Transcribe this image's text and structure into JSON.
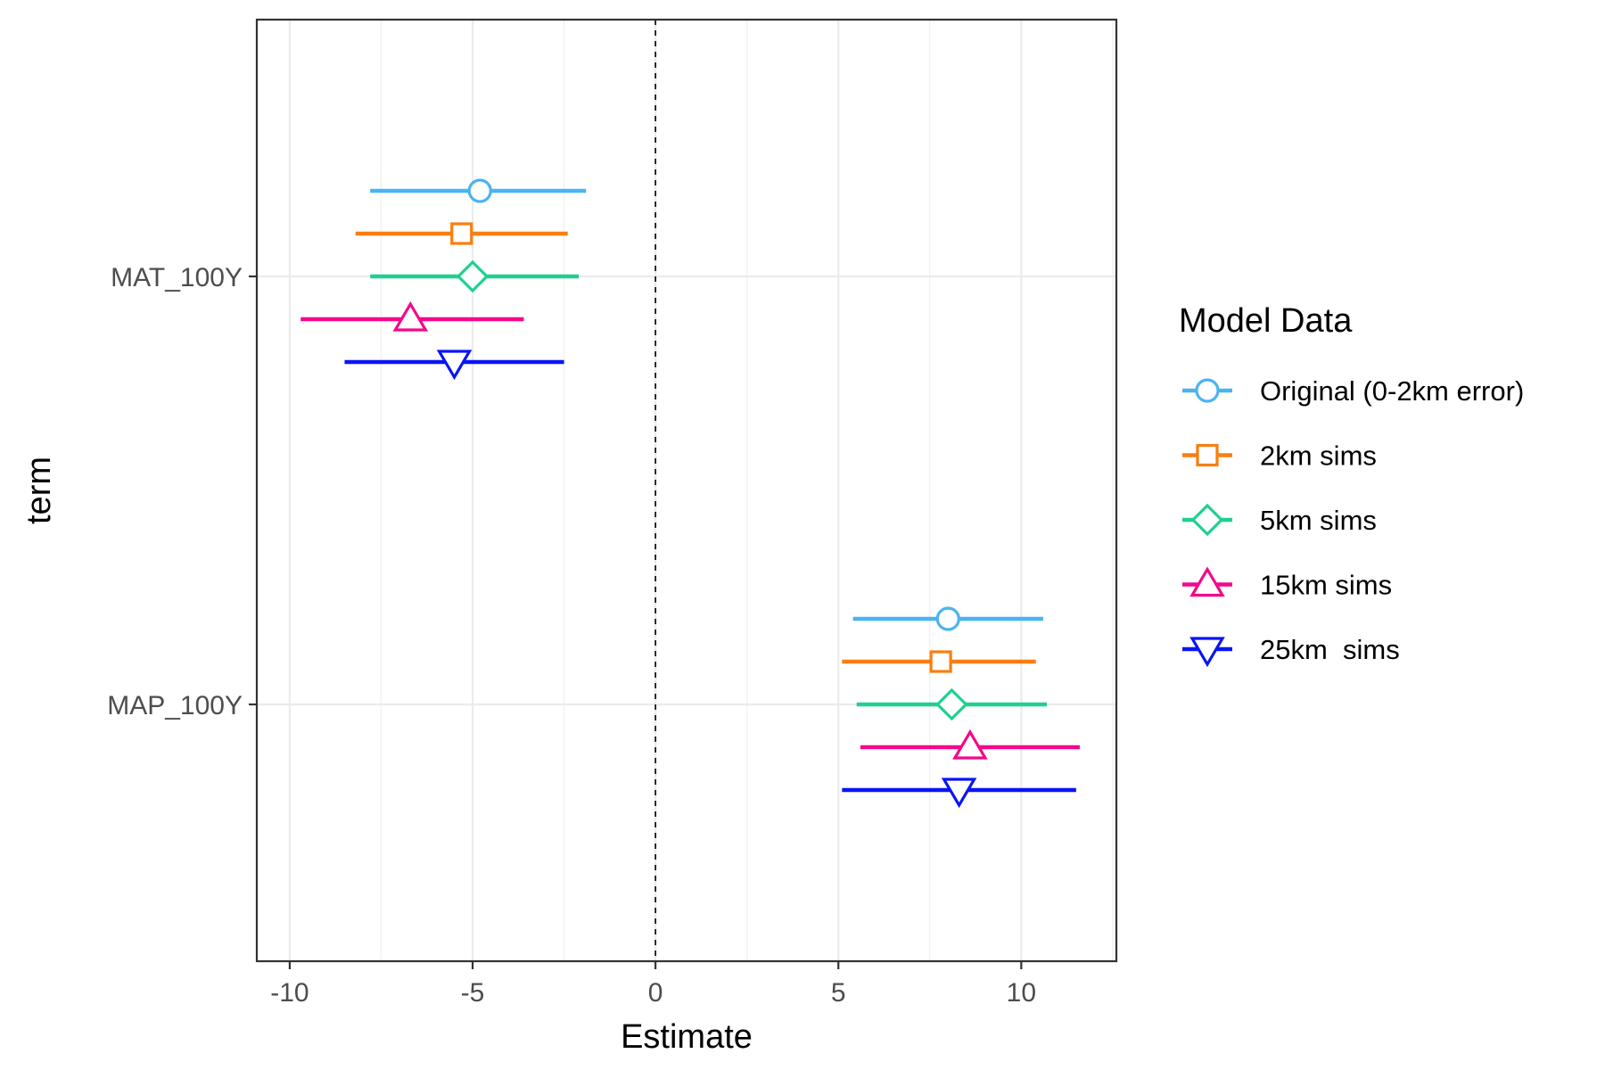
{
  "chart_data": {
    "type": "scatter",
    "subtype": "coefficient-plot-with-intervals",
    "title": "",
    "xlabel": "Estimate",
    "ylabel": "term",
    "xlim": [
      -10.9,
      12.6
    ],
    "x_ticks": [
      -10,
      -5,
      0,
      5,
      10
    ],
    "x_tick_labels": [
      "-10",
      "-5",
      "0",
      "5",
      "10"
    ],
    "categories": [
      "MAT_100Y",
      "MAP_100Y"
    ],
    "reference_line": {
      "x": 0,
      "style": "dashed"
    },
    "grid": true,
    "legend": {
      "title": "Model Data",
      "placement": "right"
    },
    "series": [
      {
        "name": "Original (0-2km error)",
        "color": "#4AB3F3",
        "marker": "circle",
        "values": [
          {
            "term": "MAT_100Y",
            "estimate": -4.8,
            "low": -7.8,
            "high": -1.9
          },
          {
            "term": "MAP_100Y",
            "estimate": 8.0,
            "low": 5.4,
            "high": 10.6
          }
        ]
      },
      {
        "name": "2km sims",
        "color": "#F97E0F",
        "marker": "square",
        "values": [
          {
            "term": "MAT_100Y",
            "estimate": -5.3,
            "low": -8.2,
            "high": -2.4
          },
          {
            "term": "MAP_100Y",
            "estimate": 7.8,
            "low": 5.1,
            "high": 10.4
          }
        ]
      },
      {
        "name": "5km sims",
        "color": "#1FD08F",
        "marker": "diamond",
        "values": [
          {
            "term": "MAT_100Y",
            "estimate": -5.0,
            "low": -7.8,
            "high": -2.1
          },
          {
            "term": "MAP_100Y",
            "estimate": 8.1,
            "low": 5.5,
            "high": 10.7
          }
        ]
      },
      {
        "name": "15km sims",
        "color": "#F5078A",
        "marker": "triangle-up",
        "values": [
          {
            "term": "MAT_100Y",
            "estimate": -6.7,
            "low": -9.7,
            "high": -3.6
          },
          {
            "term": "MAP_100Y",
            "estimate": 8.6,
            "low": 5.6,
            "high": 11.6
          }
        ]
      },
      {
        "name": "25km  sims",
        "color": "#0A14F5",
        "marker": "triangle-down",
        "values": [
          {
            "term": "MAT_100Y",
            "estimate": -5.5,
            "low": -8.5,
            "high": -2.5
          },
          {
            "term": "MAP_100Y",
            "estimate": 8.3,
            "low": 5.1,
            "high": 11.5
          }
        ]
      }
    ]
  }
}
